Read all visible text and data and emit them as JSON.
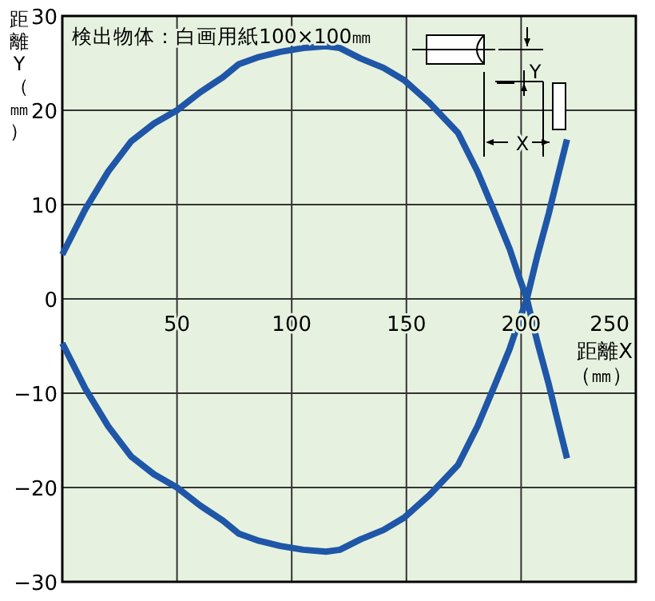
{
  "chart_data": {
    "type": "line",
    "series": [
      {
        "color": "#1f56a8",
        "x": [
          0,
          10,
          20,
          30,
          40,
          50,
          60,
          70,
          77,
          85,
          95,
          105,
          115,
          121,
          130,
          140,
          149,
          160,
          172.5,
          181,
          188.6,
          195,
          199,
          202.5,
          207,
          212,
          216,
          220
        ],
        "values": [
          4.7,
          9.5,
          13.5,
          16.7,
          18.6,
          20,
          21.9,
          23.5,
          24.9,
          25.6,
          26.2,
          26.6,
          26.8,
          26.6,
          25.5,
          24.5,
          23.2,
          20.8,
          17.6,
          13.5,
          9.1,
          5.3,
          2.4,
          0,
          -4.5,
          -9,
          -13,
          -16.9
        ]
      },
      {
        "color": "#1f56a8",
        "x": [
          0,
          10,
          20,
          30,
          40,
          50,
          60,
          70,
          77,
          85,
          95,
          105,
          115,
          121,
          130,
          140,
          149,
          160,
          172.5,
          181,
          188.6,
          195,
          199,
          202.5,
          207,
          212,
          216,
          220
        ],
        "values": [
          -4.7,
          -9.5,
          -13.5,
          -16.7,
          -18.6,
          -20,
          -21.9,
          -23.5,
          -24.9,
          -25.6,
          -26.2,
          -26.6,
          -26.8,
          -26.6,
          -25.5,
          -24.5,
          -23.2,
          -20.8,
          -17.6,
          -13.5,
          -9.1,
          -5.3,
          -2.4,
          0,
          4.5,
          9,
          13,
          16.9
        ]
      }
    ],
    "xlim": [
      0,
      250
    ],
    "ylim": [
      -30,
      30
    ],
    "xticks": [
      {
        "value": 0,
        "label": null
      },
      50,
      100,
      150,
      200,
      250
    ],
    "yticks": [
      -30,
      -20,
      -10,
      0,
      10,
      20,
      30
    ],
    "grid": true,
    "xlabel": "距離X\n（㎜）",
    "ylabel": "距離Y（㎜）",
    "annotations": [
      "検出物体：白画用紙100×100㎜",
      "Y",
      "X"
    ]
  }
}
